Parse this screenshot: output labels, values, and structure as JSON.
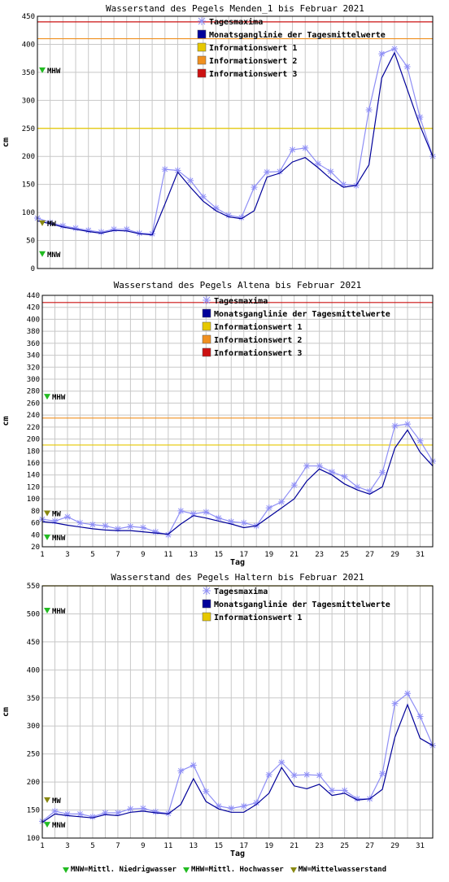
{
  "colors": {
    "tagesmaxima": "#8f8ff5",
    "monatsganglinie": "#00009a",
    "info1": "#e6c800",
    "info2": "#f09020",
    "info3": "#cc1111",
    "mnw": "#22bb22",
    "mhw": "#22bb22",
    "mw": "#888811",
    "grid": "#c8c8c8"
  },
  "legend_labels": {
    "tagesmaxima": "Tagesmaxima",
    "monatsganglinie": "Monatsganglinie der Tagesmittelwerte",
    "info1": "Informationswert 1",
    "info2": "Informationswert 2",
    "info3": "Informationswert 3"
  },
  "footer": {
    "mnw": "MNW=Mittl. Niedrigwasser",
    "mhw": "MHW=Mittl. Hochwasser",
    "mw": "MW=Mittelwasserstand"
  },
  "chart_data": [
    {
      "type": "line",
      "title": "Wasserstand des Pegels Menden_1 bis Februar 2021",
      "ylabel": "cm",
      "xlabel": "",
      "ylim": [
        0,
        450
      ],
      "yticks": [
        0,
        50,
        100,
        150,
        200,
        250,
        300,
        350,
        400,
        450
      ],
      "xlim": [
        1,
        32
      ],
      "xticks": [],
      "markers": [
        {
          "key": "mhw",
          "label": "MHW",
          "value": 353
        },
        {
          "key": "mw",
          "label": "MW",
          "value": 80
        },
        {
          "key": "mnw",
          "label": "MNW",
          "value": 25
        }
      ],
      "thresholds": [
        {
          "key": "info1",
          "value": 250
        },
        {
          "key": "info2",
          "value": 410
        },
        {
          "key": "info3",
          "value": 440
        }
      ],
      "legend": [
        "tagesmaxima",
        "monatsganglinie",
        "info1",
        "info2",
        "info3"
      ],
      "x": [
        1,
        2,
        3,
        4,
        5,
        6,
        7,
        8,
        9,
        10,
        11,
        12,
        13,
        14,
        15,
        16,
        17,
        18,
        19,
        20,
        21,
        22,
        23,
        24,
        25,
        26,
        27,
        28,
        29,
        30,
        31,
        32
      ],
      "series": [
        {
          "key": "tagesmaxima",
          "name": "Tagesmaxima",
          "values": [
            90,
            82,
            76,
            72,
            68,
            65,
            70,
            70,
            63,
            62,
            177,
            175,
            157,
            128,
            108,
            95,
            91,
            145,
            172,
            173,
            212,
            215,
            187,
            173,
            150,
            148,
            283,
            383,
            392,
            360,
            270,
            200
          ]
        },
        {
          "key": "monatsganglinie",
          "name": "Monatsganglinie der Tagesmittelwerte",
          "values": [
            85,
            80,
            74,
            70,
            66,
            63,
            68,
            67,
            62,
            60,
            115,
            172,
            145,
            120,
            103,
            92,
            89,
            103,
            163,
            170,
            190,
            198,
            180,
            160,
            145,
            148,
            185,
            340,
            385,
            320,
            255,
            200
          ]
        }
      ]
    },
    {
      "type": "line",
      "title": "Wasserstand des Pegels Altena bis Februar 2021",
      "ylabel": "cm",
      "xlabel": "Tag",
      "ylim": [
        20,
        440
      ],
      "yticks": [
        20,
        40,
        60,
        80,
        100,
        120,
        140,
        160,
        180,
        200,
        220,
        240,
        260,
        280,
        300,
        320,
        340,
        360,
        380,
        400,
        420,
        440
      ],
      "xlim": [
        1,
        32
      ],
      "xticks": [
        1,
        3,
        5,
        7,
        9,
        11,
        13,
        15,
        17,
        19,
        21,
        23,
        25,
        27,
        29,
        31
      ],
      "markers": [
        {
          "key": "mhw",
          "label": "MHW",
          "value": 270
        },
        {
          "key": "mw",
          "label": "MW",
          "value": 75
        },
        {
          "key": "mnw",
          "label": "MNW",
          "value": 35
        }
      ],
      "thresholds": [
        {
          "key": "info1",
          "value": 190
        },
        {
          "key": "info2",
          "value": 235
        },
        {
          "key": "info3",
          "value": 428
        }
      ],
      "legend": [
        "tagesmaxima",
        "monatsganglinie",
        "info1",
        "info2",
        "info3"
      ],
      "x": [
        1,
        2,
        3,
        4,
        5,
        6,
        7,
        8,
        9,
        10,
        11,
        12,
        13,
        14,
        15,
        16,
        17,
        18,
        19,
        20,
        21,
        22,
        23,
        24,
        25,
        26,
        27,
        28,
        29,
        30,
        31,
        32
      ],
      "series": [
        {
          "key": "tagesmaxima",
          "name": "Tagesmaxima",
          "values": [
            66,
            63,
            70,
            60,
            57,
            55,
            50,
            54,
            52,
            45,
            40,
            80,
            75,
            78,
            68,
            62,
            60,
            55,
            85,
            95,
            123,
            155,
            155,
            145,
            137,
            120,
            113,
            144,
            222,
            225,
            197,
            163
          ]
        },
        {
          "key": "monatsganglinie",
          "name": "Monatsganglinie der Tagesmittelwerte",
          "values": [
            62,
            60,
            56,
            53,
            50,
            48,
            47,
            47,
            45,
            43,
            41,
            58,
            72,
            68,
            63,
            58,
            52,
            55,
            70,
            85,
            100,
            130,
            150,
            140,
            125,
            115,
            108,
            120,
            185,
            215,
            178,
            155
          ]
        }
      ]
    },
    {
      "type": "line",
      "title": "Wasserstand des Pegels Haltern bis Februar 2021",
      "ylabel": "cm",
      "xlabel": "Tag",
      "ylim": [
        100,
        550
      ],
      "yticks": [
        100,
        150,
        200,
        250,
        300,
        350,
        400,
        450,
        500,
        550
      ],
      "xlim": [
        1,
        32
      ],
      "xticks": [
        1,
        3,
        5,
        7,
        9,
        11,
        13,
        15,
        17,
        19,
        21,
        23,
        25,
        27,
        29,
        31
      ],
      "markers": [
        {
          "key": "mhw",
          "label": "MHW",
          "value": 505
        },
        {
          "key": "mw",
          "label": "MW",
          "value": 167
        },
        {
          "key": "mnw",
          "label": "MNW",
          "value": 123
        }
      ],
      "thresholds": [
        {
          "key": "info1",
          "value": 550
        }
      ],
      "legend": [
        "tagesmaxima",
        "monatsganglinie",
        "info1"
      ],
      "x": [
        1,
        2,
        3,
        4,
        5,
        6,
        7,
        8,
        9,
        10,
        11,
        12,
        13,
        14,
        15,
        16,
        17,
        18,
        19,
        20,
        21,
        22,
        23,
        24,
        25,
        26,
        27,
        28,
        29,
        30,
        31,
        32
      ],
      "series": [
        {
          "key": "tagesmaxima",
          "name": "Tagesmaxima",
          "values": [
            130,
            148,
            143,
            143,
            138,
            145,
            145,
            152,
            153,
            147,
            144,
            220,
            230,
            183,
            157,
            153,
            157,
            163,
            213,
            235,
            212,
            213,
            212,
            185,
            185,
            170,
            170,
            215,
            340,
            358,
            317,
            265
          ]
        },
        {
          "key": "monatsganglinie",
          "name": "Monatsganglinie der Tagesmittelwerte",
          "values": [
            128,
            143,
            140,
            138,
            136,
            142,
            140,
            146,
            148,
            145,
            143,
            160,
            206,
            165,
            152,
            146,
            146,
            160,
            180,
            226,
            193,
            188,
            196,
            176,
            180,
            168,
            170,
            187,
            280,
            338,
            278,
            265
          ]
        }
      ]
    }
  ]
}
